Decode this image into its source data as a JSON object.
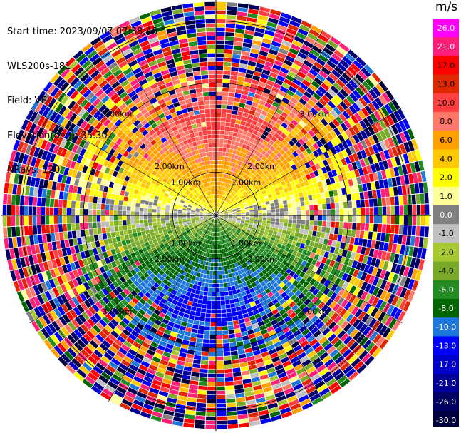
{
  "header": {
    "start_time": "Start time: 2023/09/07 07:38:43",
    "instrument": "WLS200s-181",
    "field": "Field: VEL",
    "elevation": "Elevation(deg): 35.30",
    "nrays": "NRays: 120"
  },
  "chart_data": {
    "type": "ppi",
    "field": "VEL",
    "units": "m/s",
    "nrays": 120,
    "elevation_deg": 35.3,
    "range_rings": [
      {
        "label": "1.00km",
        "km": 1
      },
      {
        "label": "2.00km",
        "km": 2
      },
      {
        "label": "3.00km",
        "km": 3
      }
    ],
    "colorbar": {
      "label": "m/s",
      "ticks": [
        "26.0",
        "21.0",
        "17.0",
        "13.0",
        "10.0",
        "8.0",
        "6.0",
        "4.0",
        "2.0",
        "1.0",
        "0.0",
        "-1.0",
        "-2.0",
        "-4.0",
        "-6.0",
        "-8.0",
        "-10.0",
        "-13.0",
        "-17.0",
        "-21.0",
        "-26.0",
        "-30.0"
      ],
      "colors": [
        "#ff00ff",
        "#ff1e78",
        "#ff0000",
        "#e02800",
        "#ff4040",
        "#ff7868",
        "#ffa000",
        "#ffc800",
        "#ffff00",
        "#ffff99",
        "#808080",
        "#c0c0c0",
        "#a8c832",
        "#78aa28",
        "#228b22",
        "#006400",
        "#1e78dc",
        "#0000ff",
        "#0000cd",
        "#000096",
        "#000064",
        "#00003c"
      ]
    }
  }
}
